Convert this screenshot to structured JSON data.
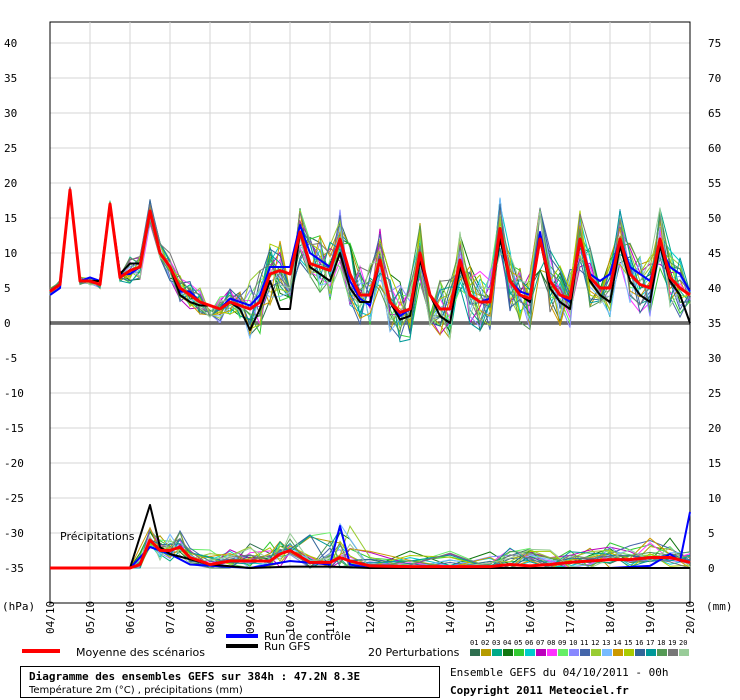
{
  "chart_data": {
    "type": "line",
    "left_axis": {
      "label": "(hPa)",
      "ticks": [
        40,
        35,
        30,
        25,
        20,
        15,
        10,
        5,
        0,
        -5,
        -10,
        -15,
        -20,
        -25,
        -30,
        -35
      ],
      "range": [
        -40,
        43
      ]
    },
    "right_axis": {
      "label": "(mm)",
      "ticks": [
        75,
        70,
        65,
        60,
        55,
        50,
        45,
        40,
        35,
        30,
        25,
        20,
        15,
        10,
        5,
        0
      ]
    },
    "x_ticks": [
      "04/10",
      "05/10",
      "06/10",
      "07/10",
      "08/10",
      "09/10",
      "10/10",
      "11/10",
      "12/10",
      "13/10",
      "14/10",
      "15/10",
      "16/10",
      "17/10",
      "18/10",
      "19/10",
      "20/10"
    ],
    "x_range_days": [
      0,
      16
    ],
    "baseline_label": "Précipitations",
    "series": [
      {
        "name": "Moyenne des scénarios",
        "color": "#ff0000",
        "kind": "temperature",
        "values": [
          [
            0,
            4.5
          ],
          [
            0.25,
            5.5
          ],
          [
            0.5,
            19
          ],
          [
            0.75,
            6
          ],
          [
            1,
            6
          ],
          [
            1.25,
            5.5
          ],
          [
            1.5,
            17
          ],
          [
            1.75,
            6.5
          ],
          [
            2,
            7.5
          ],
          [
            2.25,
            8
          ],
          [
            2.5,
            16
          ],
          [
            2.75,
            10
          ],
          [
            3,
            8
          ],
          [
            3.25,
            5
          ],
          [
            3.5,
            4
          ],
          [
            3.75,
            3
          ],
          [
            4,
            2.5
          ],
          [
            4.25,
            2
          ],
          [
            4.5,
            3
          ],
          [
            4.75,
            2.5
          ],
          [
            5,
            2
          ],
          [
            5.25,
            3
          ],
          [
            5.5,
            7
          ],
          [
            5.75,
            7.5
          ],
          [
            6,
            7
          ],
          [
            6.25,
            13
          ],
          [
            6.5,
            8.5
          ],
          [
            6.75,
            8
          ],
          [
            7,
            7.5
          ],
          [
            7.25,
            12
          ],
          [
            7.5,
            7
          ],
          [
            7.75,
            4
          ],
          [
            8,
            4
          ],
          [
            8.25,
            9
          ],
          [
            8.5,
            3
          ],
          [
            8.75,
            1.5
          ],
          [
            9,
            2
          ],
          [
            9.25,
            10
          ],
          [
            9.5,
            4
          ],
          [
            9.75,
            2
          ],
          [
            10,
            2
          ],
          [
            10.25,
            9
          ],
          [
            10.5,
            4
          ],
          [
            10.75,
            3
          ],
          [
            11,
            3
          ],
          [
            11.25,
            13.5
          ],
          [
            11.5,
            6
          ],
          [
            11.75,
            4
          ],
          [
            12,
            3.5
          ],
          [
            12.25,
            12
          ],
          [
            12.5,
            6
          ],
          [
            12.75,
            4
          ],
          [
            13,
            3.5
          ],
          [
            13.25,
            12
          ],
          [
            13.5,
            6.5
          ],
          [
            13.75,
            5
          ],
          [
            14,
            5
          ],
          [
            14.25,
            12
          ],
          [
            14.5,
            7
          ],
          [
            14.75,
            5.5
          ],
          [
            15,
            5
          ],
          [
            15.25,
            12
          ],
          [
            15.5,
            6.5
          ],
          [
            15.75,
            5
          ],
          [
            16,
            4
          ]
        ]
      },
      {
        "name": "Run de contrôle",
        "color": "#0000ff",
        "kind": "temperature",
        "values": [
          [
            0,
            4
          ],
          [
            0.25,
            5
          ],
          [
            0.5,
            19
          ],
          [
            0.75,
            6
          ],
          [
            1,
            6.5
          ],
          [
            1.25,
            6
          ],
          [
            1.5,
            17
          ],
          [
            1.75,
            7
          ],
          [
            2,
            7
          ],
          [
            2.25,
            8
          ],
          [
            2.5,
            16
          ],
          [
            2.75,
            10
          ],
          [
            3,
            8
          ],
          [
            3.25,
            4.5
          ],
          [
            3.5,
            4.5
          ],
          [
            3.75,
            3
          ],
          [
            4,
            2.5
          ],
          [
            4.25,
            2
          ],
          [
            4.5,
            3.5
          ],
          [
            4.75,
            3
          ],
          [
            5,
            2.5
          ],
          [
            5.25,
            4
          ],
          [
            5.5,
            8
          ],
          [
            5.75,
            8
          ],
          [
            6,
            8
          ],
          [
            6.25,
            14
          ],
          [
            6.5,
            10
          ],
          [
            6.75,
            9
          ],
          [
            7,
            8
          ],
          [
            7.25,
            12
          ],
          [
            7.5,
            6
          ],
          [
            7.75,
            3.5
          ],
          [
            8,
            2.5
          ],
          [
            8.25,
            9
          ],
          [
            8.5,
            3
          ],
          [
            8.75,
            1
          ],
          [
            9,
            2
          ],
          [
            9.25,
            9
          ],
          [
            9.5,
            4
          ],
          [
            9.75,
            2
          ],
          [
            10,
            2
          ],
          [
            10.25,
            9
          ],
          [
            10.5,
            4
          ],
          [
            10.75,
            3
          ],
          [
            11,
            3.5
          ],
          [
            11.25,
            13
          ],
          [
            11.5,
            6
          ],
          [
            11.75,
            4.5
          ],
          [
            12,
            4
          ],
          [
            12.25,
            13
          ],
          [
            12.5,
            6
          ],
          [
            12.75,
            4
          ],
          [
            13,
            3
          ],
          [
            13.25,
            12
          ],
          [
            13.5,
            7
          ],
          [
            13.75,
            6
          ],
          [
            14,
            7
          ],
          [
            14.25,
            12
          ],
          [
            14.5,
            8
          ],
          [
            14.75,
            7
          ],
          [
            15,
            6
          ],
          [
            15.25,
            11
          ],
          [
            15.5,
            8
          ],
          [
            15.75,
            7
          ],
          [
            16,
            4.5
          ]
        ]
      },
      {
        "name": "Run GFS",
        "color": "#000000",
        "kind": "temperature",
        "values": [
          [
            0,
            4.5
          ],
          [
            0.25,
            5.5
          ],
          [
            0.5,
            19
          ],
          [
            0.75,
            6
          ],
          [
            1,
            6
          ],
          [
            1.25,
            6
          ],
          [
            1.5,
            17
          ],
          [
            1.75,
            7
          ],
          [
            2,
            8.5
          ],
          [
            2.25,
            8.5
          ],
          [
            2.5,
            16
          ],
          [
            2.75,
            10
          ],
          [
            3,
            8
          ],
          [
            3.25,
            4
          ],
          [
            3.5,
            3
          ],
          [
            3.75,
            2.5
          ],
          [
            4,
            2.5
          ],
          [
            4.25,
            2
          ],
          [
            4.5,
            3
          ],
          [
            4.75,
            2
          ],
          [
            5,
            -1
          ],
          [
            5.25,
            2
          ],
          [
            5.5,
            6
          ],
          [
            5.75,
            2
          ],
          [
            6,
            2
          ],
          [
            6.25,
            13
          ],
          [
            6.5,
            8
          ],
          [
            6.75,
            7
          ],
          [
            7,
            6
          ],
          [
            7.25,
            10
          ],
          [
            7.5,
            5
          ],
          [
            7.75,
            3
          ],
          [
            8,
            3
          ],
          [
            8.25,
            9
          ],
          [
            8.5,
            3
          ],
          [
            8.75,
            0.5
          ],
          [
            9,
            1
          ],
          [
            9.25,
            9
          ],
          [
            9.5,
            4
          ],
          [
            9.75,
            1
          ],
          [
            10,
            0
          ],
          [
            10.25,
            8
          ],
          [
            10.5,
            4
          ],
          [
            10.75,
            3
          ],
          [
            11,
            3
          ],
          [
            11.25,
            12
          ],
          [
            11.5,
            6
          ],
          [
            11.75,
            4
          ],
          [
            12,
            3
          ],
          [
            12.25,
            12
          ],
          [
            12.5,
            5
          ],
          [
            12.75,
            3
          ],
          [
            13,
            2
          ],
          [
            13.25,
            12
          ],
          [
            13.5,
            6
          ],
          [
            13.75,
            4
          ],
          [
            14,
            3
          ],
          [
            14.25,
            11
          ],
          [
            14.5,
            6
          ],
          [
            14.75,
            4
          ],
          [
            15,
            3
          ],
          [
            15.25,
            11
          ],
          [
            15.5,
            6
          ],
          [
            15.75,
            4
          ],
          [
            16,
            0
          ]
        ]
      },
      {
        "name": "Moyenne des scénarios",
        "color": "#ff0000",
        "kind": "precipitation",
        "values": [
          [
            0,
            0
          ],
          [
            1,
            0
          ],
          [
            2,
            0
          ],
          [
            2.25,
            0.5
          ],
          [
            2.5,
            4
          ],
          [
            2.75,
            2.5
          ],
          [
            3,
            2.5
          ],
          [
            3.25,
            3
          ],
          [
            3.5,
            1.5
          ],
          [
            4,
            0.5
          ],
          [
            4.5,
            1
          ],
          [
            5,
            1
          ],
          [
            5.5,
            1
          ],
          [
            5.75,
            2
          ],
          [
            6,
            2.5
          ],
          [
            6.5,
            0.8
          ],
          [
            7,
            0.8
          ],
          [
            7.25,
            1.5
          ],
          [
            7.5,
            1
          ],
          [
            8,
            0.3
          ],
          [
            9,
            0.2
          ],
          [
            10,
            0.2
          ],
          [
            11,
            0.2
          ],
          [
            11.5,
            0.5
          ],
          [
            12,
            0.3
          ],
          [
            12.5,
            0.5
          ],
          [
            13,
            0.8
          ],
          [
            13.5,
            1
          ],
          [
            14,
            1.2
          ],
          [
            14.5,
            1.2
          ],
          [
            15,
            1.5
          ],
          [
            15.5,
            1.5
          ],
          [
            16,
            0.8
          ]
        ]
      },
      {
        "name": "Run de contrôle",
        "color": "#0000ff",
        "kind": "precipitation",
        "values": [
          [
            0,
            0
          ],
          [
            2,
            0
          ],
          [
            2.5,
            3
          ],
          [
            3,
            2
          ],
          [
            3.5,
            0.5
          ],
          [
            5,
            0
          ],
          [
            6,
            1
          ],
          [
            7,
            0.5
          ],
          [
            7.25,
            6
          ],
          [
            7.5,
            0.5
          ],
          [
            8,
            0
          ],
          [
            10,
            0
          ],
          [
            12,
            0
          ],
          [
            14,
            0
          ],
          [
            15,
            0.3
          ],
          [
            15.5,
            2
          ],
          [
            15.75,
            1
          ],
          [
            16,
            8
          ]
        ]
      },
      {
        "name": "Run GFS",
        "color": "#000000",
        "kind": "precipitation",
        "values": [
          [
            0,
            0
          ],
          [
            2,
            0
          ],
          [
            2.5,
            9
          ],
          [
            2.75,
            3
          ],
          [
            3,
            2
          ],
          [
            4,
            0.5
          ],
          [
            5,
            0
          ],
          [
            6,
            0.2
          ],
          [
            7,
            0.2
          ],
          [
            8,
            0
          ],
          [
            16,
            0
          ]
        ]
      }
    ]
  },
  "legend": {
    "mean_label": "Moyenne des scénarios",
    "control_label": "Run de contrôle",
    "gfs_label": "Run GFS",
    "perturbations_label": "20 Perturbations",
    "perturbation_numbers": [
      "01",
      "02",
      "03",
      "04",
      "05",
      "06",
      "07",
      "08",
      "09",
      "10",
      "11",
      "12",
      "13",
      "14",
      "15",
      "16",
      "17",
      "18",
      "19",
      "20"
    ],
    "perturbation_colors": [
      "#2f6f4f",
      "#b59b00",
      "#00aa88",
      "#117711",
      "#33cc33",
      "#00cccc",
      "#bb00bb",
      "#ff33ff",
      "#66ee66",
      "#8888ff",
      "#4466aa",
      "#99cc33",
      "#77bbff",
      "#cc9900",
      "#aacc00",
      "#336699",
      "#009999",
      "#559955",
      "#777777",
      "#99cc99"
    ],
    "mean_color": "#ff0000",
    "control_color": "#0000ff",
    "gfs_color": "#000000"
  },
  "title_box": {
    "title": "Diagramme des ensembles GEFS sur 384h : 47.2N 8.3E",
    "subtitle": "Température 2m (°C) , précipitations (mm)"
  },
  "footer": {
    "run_info": "Ensemble GEFS du 04/10/2011 - 00h",
    "copyright": "Copyright 2011 Meteociel.fr"
  }
}
